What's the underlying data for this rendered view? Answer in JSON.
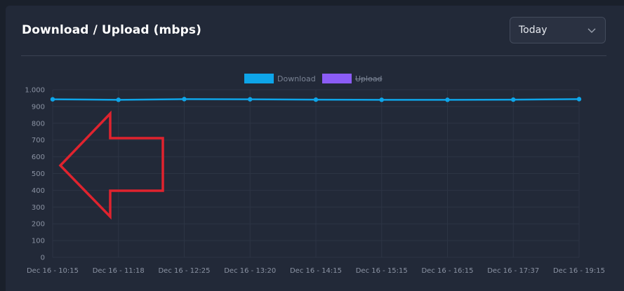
{
  "card": {
    "title": "Download / Upload (mbps)"
  },
  "range_select": {
    "value": "Today",
    "icon": "chevron-down-icon"
  },
  "colors": {
    "download": "#0ea5e9",
    "upload": "#8b5cf6",
    "annotation_arrow": "#e0232e"
  },
  "legend": [
    {
      "label": "Download",
      "color": "#0ea5e9",
      "hidden": false
    },
    {
      "label": "Upload",
      "color": "#8b5cf6",
      "hidden": true
    }
  ],
  "chart_data": {
    "type": "line",
    "categories": [
      "Dec 16 - 10:15",
      "Dec 16 - 11:18",
      "Dec 16 - 12:25",
      "Dec 16 - 13:20",
      "Dec 16 - 14:15",
      "Dec 16 - 15:15",
      "Dec 16 - 16:15",
      "Dec 16 - 17:37",
      "Dec 16 - 19:15"
    ],
    "series": [
      {
        "name": "Download",
        "values": [
          943,
          940,
          944,
          943,
          941,
          940,
          940,
          941,
          944
        ],
        "color": "#0ea5e9"
      }
    ],
    "ylim": [
      0,
      1000
    ],
    "yticks": [
      0,
      100,
      200,
      300,
      400,
      500,
      600,
      700,
      800,
      900,
      1000
    ],
    "ytick_labels": [
      "0",
      "100",
      "200",
      "300",
      "400",
      "500",
      "600",
      "700",
      "800",
      "900",
      "1.000"
    ],
    "grid": true,
    "legend_position": "top-center"
  },
  "annotation": {
    "type": "arrow",
    "direction": "left",
    "color": "#e0232e"
  }
}
